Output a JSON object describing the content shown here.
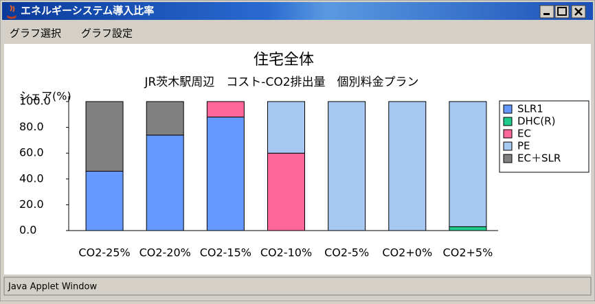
{
  "window": {
    "title": "エネルギーシステム導入比率"
  },
  "menu": [
    "グラフ選択",
    "グラフ設定"
  ],
  "status": "Java Applet Window",
  "chart_data": {
    "type": "stacked-bar",
    "title": "住宅全体",
    "subtitle": "JR茨木駅周辺　コスト-CO2排出量　個別料金プラン",
    "y_label": "シェア(%)",
    "categories": [
      "CO2-25%",
      "CO2-20%",
      "CO2-15%",
      "CO2-10%",
      "CO2-5%",
      "CO2+0%",
      "CO2+5%"
    ],
    "series": [
      {
        "name": "SLR1",
        "color": "#6699ff",
        "values": [
          46,
          74,
          88,
          0,
          0,
          0,
          0
        ]
      },
      {
        "name": "DHC(R)",
        "color": "#1fcc8c",
        "values": [
          0,
          0,
          0,
          0,
          0,
          0,
          3
        ]
      },
      {
        "name": "EC",
        "color": "#ff6699",
        "values": [
          0,
          0,
          12,
          60,
          0,
          0,
          0
        ]
      },
      {
        "name": "PE",
        "color": "#a6c8f2",
        "values": [
          0,
          0,
          0,
          40,
          100,
          100,
          97
        ]
      },
      {
        "name": "EC＋SLR",
        "color": "#808080",
        "values": [
          54,
          26,
          0,
          0,
          0,
          0,
          0
        ]
      }
    ],
    "ylim": [
      0,
      100
    ],
    "yticks": [
      {
        "value": 0,
        "label": "0.0"
      },
      {
        "value": 20,
        "label": "20.0"
      },
      {
        "value": 40,
        "label": "40.0"
      },
      {
        "value": 60,
        "label": "60.0"
      },
      {
        "value": 80,
        "label": "80.0"
      },
      {
        "value": 100,
        "label": "100.0"
      }
    ],
    "legend": "right"
  }
}
